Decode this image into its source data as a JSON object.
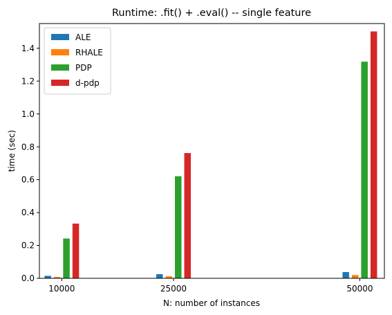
{
  "chart_data": {
    "type": "bar",
    "title": "Runtime: .fit() + .eval() -- single feature",
    "xlabel": "N: number of instances",
    "ylabel": "time (sec)",
    "x": [
      10000,
      25000,
      50000
    ],
    "categories": [
      "10000",
      "25000",
      "50000"
    ],
    "ylim": [
      0,
      1.55
    ],
    "yticks": [
      "0.0",
      "0.2",
      "0.4",
      "0.6",
      "0.8",
      "1.0",
      "1.2",
      "1.4"
    ],
    "legend_position": "top-left",
    "grid": false,
    "series": [
      {
        "name": "ALE",
        "color": "#1f77b4",
        "values": [
          0.015,
          0.025,
          0.038
        ]
      },
      {
        "name": "RHALE",
        "color": "#ff7f0e",
        "values": [
          0.008,
          0.012,
          0.02
        ]
      },
      {
        "name": "PDP",
        "color": "#2ca02c",
        "values": [
          0.242,
          0.621,
          1.318
        ]
      },
      {
        "name": "d-pdp",
        "color": "#d62728",
        "values": [
          0.333,
          0.762,
          1.502
        ]
      }
    ]
  }
}
